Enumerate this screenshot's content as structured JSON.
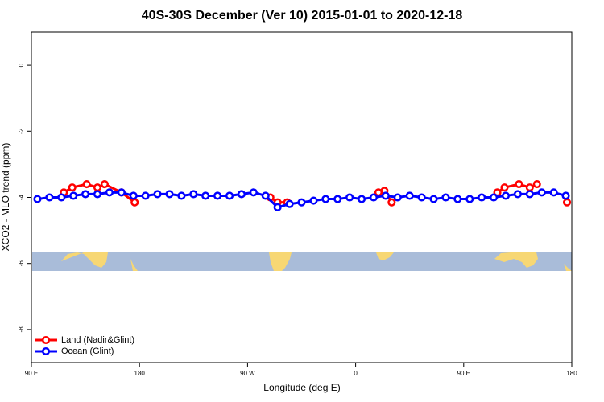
{
  "chart_data": {
    "type": "line",
    "title": "40S-30S December (Ver 10)   2015-01-01 to 2020-12-18",
    "x_label": "Longitude (deg E)",
    "y_label": "XCO2 - MLO trend (ppm)",
    "xlim": [
      90,
      540
    ],
    "xticks": [
      {
        "value": 90,
        "label": "90 E"
      },
      180,
      {
        "value": 270,
        "label": "90 W"
      },
      {
        "value": 360,
        "label": "0"
      },
      {
        "value": 450,
        "label": "90 E"
      },
      {
        "value": 540,
        "label": "180"
      }
    ],
    "ylim": [
      -9,
      1
    ],
    "yticks": [
      0,
      -2,
      -4,
      -6,
      -8
    ],
    "legend": "bottom-left",
    "series": [
      {
        "name": "Land (Nadir&Glint)",
        "color": "#ff0000",
        "x": [
          117,
          124,
          136,
          145,
          151,
          165,
          176,
          null,
          289,
          295,
          303,
          null,
          379,
          384,
          390,
          null,
          478,
          484,
          496,
          505,
          511,
          null,
          536
        ],
        "values": [
          -3.85,
          -3.7,
          -3.6,
          -3.7,
          -3.6,
          -3.85,
          -4.15,
          null,
          -4.0,
          -4.15,
          -4.15,
          null,
          -3.85,
          -3.8,
          -4.15,
          null,
          -3.85,
          -3.7,
          -3.6,
          -3.7,
          -3.6,
          null,
          -4.15
        ]
      },
      {
        "name": "Ocean (Glint)",
        "color": "#0000ff",
        "x": [
          95,
          105,
          115,
          125,
          135,
          145,
          155,
          165,
          175,
          185,
          195,
          205,
          215,
          225,
          235,
          245,
          255,
          265,
          275,
          285,
          295,
          305,
          315,
          325,
          335,
          345,
          355,
          365,
          375,
          385,
          395,
          405,
          415,
          425,
          435,
          445,
          455,
          465,
          475,
          485,
          495,
          505,
          515,
          525,
          535
        ],
        "values": [
          -4.05,
          -4.0,
          -4.0,
          -3.95,
          -3.9,
          -3.9,
          -3.85,
          -3.85,
          -3.95,
          -3.95,
          -3.9,
          -3.9,
          -3.95,
          -3.9,
          -3.95,
          -3.95,
          -3.95,
          -3.9,
          -3.85,
          -3.95,
          -4.3,
          -4.2,
          -4.15,
          -4.1,
          -4.05,
          -4.05,
          -4.0,
          -4.05,
          -4.0,
          -3.95,
          -4.0,
          -3.95,
          -4.0,
          -4.05,
          -4.0,
          -4.05,
          -4.05,
          -4.0,
          -4.0,
          -3.95,
          -3.9,
          -3.9,
          -3.85,
          -3.85,
          -3.95
        ]
      }
    ]
  }
}
